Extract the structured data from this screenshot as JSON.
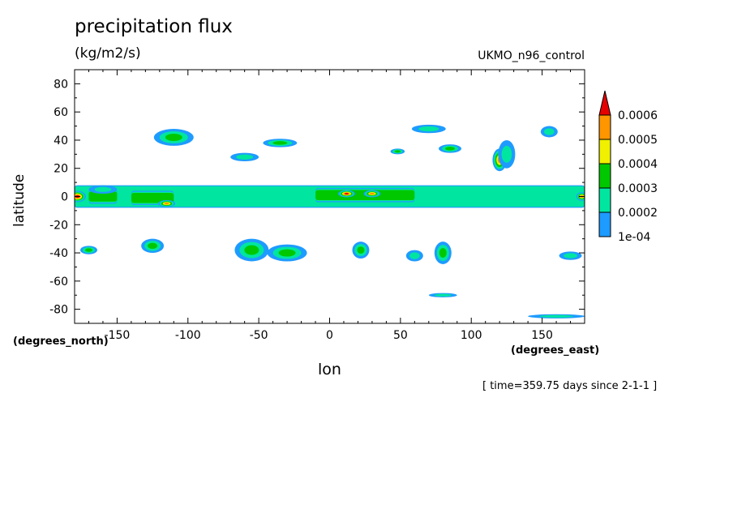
{
  "chart_data": {
    "type": "heatmap",
    "title": "precipitation flux",
    "units": "(kg/m2/s)",
    "model_label": "UKMO_n96_control",
    "xlabel": "lon",
    "ylabel": "latitude",
    "x_unit_note": "(degrees_east)",
    "y_unit_note": "(degrees_north)",
    "time_note": "[ time=359.75 days since 2-1-1 ]",
    "xlim": [
      -180,
      180
    ],
    "ylim": [
      -90,
      90
    ],
    "x_ticks": [
      -150,
      -100,
      -50,
      0,
      50,
      100,
      150
    ],
    "x_tick_labels": [
      "-150",
      "-100",
      "-50",
      "0",
      "50",
      "100",
      "150"
    ],
    "y_ticks": [
      80,
      60,
      40,
      20,
      0,
      -20,
      -40,
      -60,
      -80
    ],
    "y_tick_labels": [
      "80",
      "60",
      "40",
      "20",
      "0",
      "-20",
      "-40",
      "-60",
      "-80"
    ],
    "colorbar": {
      "levels": [
        0.0001,
        0.0002,
        0.0003,
        0.0004,
        0.0005,
        0.0006
      ],
      "labels": [
        "1e-04",
        "0.0002",
        "0.0003",
        "0.0004",
        "0.0005",
        "0.0006"
      ],
      "colors": [
        "#1e9bff",
        "#00e6a0",
        "#00c800",
        "#f0f000",
        "#ff9600",
        "#e60000"
      ],
      "extend": "max"
    },
    "features": [
      {
        "shape": "band",
        "lon": [
          -180,
          180
        ],
        "lat": [
          -8,
          8
        ],
        "level": 1
      },
      {
        "shape": "band",
        "lon": [
          -170,
          -150
        ],
        "lat": [
          -5,
          5
        ],
        "level": 2
      },
      {
        "shape": "band",
        "lon": [
          -140,
          -110
        ],
        "lat": [
          -6,
          4
        ],
        "level": 2
      },
      {
        "shape": "band",
        "lon": [
          -10,
          60
        ],
        "lat": [
          -4,
          6
        ],
        "level": 2
      },
      {
        "shape": "blob",
        "lon": -178,
        "lat": 0,
        "rlon": 6,
        "rlat": 4,
        "level": 5
      },
      {
        "shape": "blob",
        "lon": 12,
        "lat": 2,
        "rlon": 6,
        "rlat": 2.5,
        "level": 5
      },
      {
        "shape": "blob",
        "lon": 30,
        "lat": 2,
        "rlon": 6,
        "rlat": 2.5,
        "level": 4
      },
      {
        "shape": "blob",
        "lon": -115,
        "lat": -5,
        "rlon": 6,
        "rlat": 2.5,
        "level": 4
      },
      {
        "shape": "blob",
        "lon": 178,
        "lat": 0,
        "rlon": 4,
        "rlat": 3,
        "level": 4
      },
      {
        "shape": "blob",
        "lon": -160,
        "lat": 5,
        "rlon": 10,
        "rlat": 3,
        "level": 1
      },
      {
        "shape": "blob",
        "lon": 120,
        "lat": 26,
        "rlon": 5,
        "rlat": 8,
        "level": 4
      },
      {
        "shape": "blob",
        "lon": 125,
        "lat": 30,
        "rlon": 6,
        "rlat": 10,
        "level": 1
      },
      {
        "shape": "blob",
        "lon": -110,
        "lat": 42,
        "rlon": 14,
        "rlat": 6,
        "level": 2
      },
      {
        "shape": "blob",
        "lon": -60,
        "lat": 28,
        "rlon": 10,
        "rlat": 3,
        "level": 1
      },
      {
        "shape": "blob",
        "lon": -35,
        "lat": 38,
        "rlon": 12,
        "rlat": 3,
        "level": 2
      },
      {
        "shape": "blob",
        "lon": 48,
        "lat": 32,
        "rlon": 5,
        "rlat": 2,
        "level": 2
      },
      {
        "shape": "blob",
        "lon": 70,
        "lat": 48,
        "rlon": 12,
        "rlat": 3,
        "level": 1
      },
      {
        "shape": "blob",
        "lon": 85,
        "lat": 34,
        "rlon": 8,
        "rlat": 3,
        "level": 2
      },
      {
        "shape": "blob",
        "lon": 155,
        "lat": 46,
        "rlon": 6,
        "rlat": 4,
        "level": 1
      },
      {
        "shape": "blob",
        "lon": -125,
        "lat": -35,
        "rlon": 8,
        "rlat": 5,
        "level": 2
      },
      {
        "shape": "blob",
        "lon": -170,
        "lat": -38,
        "rlon": 6,
        "rlat": 3,
        "level": 2
      },
      {
        "shape": "blob",
        "lon": -55,
        "lat": -38,
        "rlon": 12,
        "rlat": 8,
        "level": 2
      },
      {
        "shape": "blob",
        "lon": -30,
        "lat": -40,
        "rlon": 14,
        "rlat": 6,
        "level": 2
      },
      {
        "shape": "blob",
        "lon": 22,
        "lat": -38,
        "rlon": 6,
        "rlat": 6,
        "level": 2
      },
      {
        "shape": "blob",
        "lon": 80,
        "lat": -40,
        "rlon": 6,
        "rlat": 8,
        "level": 2
      },
      {
        "shape": "blob",
        "lon": 60,
        "lat": -42,
        "rlon": 6,
        "rlat": 4,
        "level": 1
      },
      {
        "shape": "blob",
        "lon": 170,
        "lat": -42,
        "rlon": 8,
        "rlat": 3,
        "level": 1
      },
      {
        "shape": "blob",
        "lon": 160,
        "lat": -85,
        "rlon": 20,
        "rlat": 1.5,
        "level": 1
      },
      {
        "shape": "blob",
        "lon": 80,
        "lat": -70,
        "rlon": 10,
        "rlat": 1.5,
        "level": 1
      }
    ]
  }
}
